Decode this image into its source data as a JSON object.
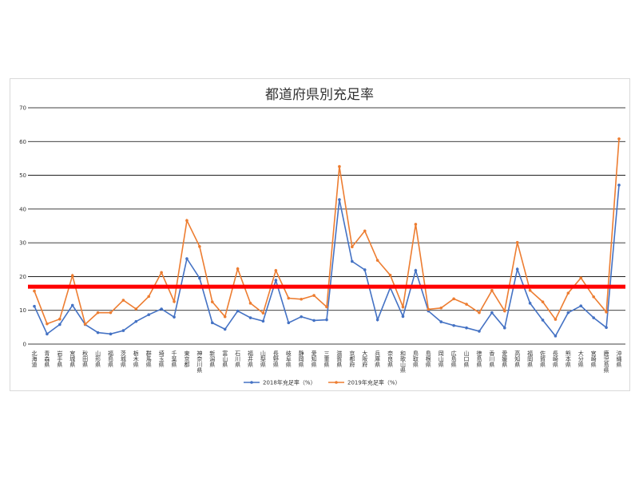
{
  "chart_data": {
    "type": "line",
    "title": "都道府県別充足率",
    "xlabel": "",
    "ylabel": "",
    "ylim": [
      0,
      70
    ],
    "yticks": [
      0,
      10,
      20,
      30,
      40,
      50,
      60,
      70
    ],
    "grid": true,
    "legend_position": "bottom",
    "categories": [
      "北海道",
      "青森県",
      "岩手県",
      "宮城県",
      "秋田県",
      "山形県",
      "福島県",
      "茨城県",
      "栃木県",
      "群馬県",
      "埼玉県",
      "千葉県",
      "東京都",
      "神奈川県",
      "新潟県",
      "富山県",
      "石川県",
      "福井県",
      "山梨県",
      "長野県",
      "岐阜県",
      "静岡県",
      "愛知県",
      "三重県",
      "滋賀県",
      "京都府",
      "大阪府",
      "兵庫県",
      "奈良県",
      "和歌山県",
      "鳥取県",
      "島根県",
      "岡山県",
      "広島県",
      "山口県",
      "徳島県",
      "香川県",
      "愛媛県",
      "高知県",
      "福岡県",
      "佐賀県",
      "長崎県",
      "熊本県",
      "大分県",
      "宮崎県",
      "鹿児島県",
      "沖縄県"
    ],
    "series": [
      {
        "name": "2018年充足率（%）",
        "color": "#4472c4",
        "values": [
          11.2,
          3.0,
          5.8,
          11.5,
          5.8,
          3.4,
          3.0,
          4.0,
          6.7,
          8.7,
          10.4,
          8.0,
          25.3,
          19.5,
          6.3,
          4.4,
          9.8,
          7.8,
          6.8,
          18.9,
          6.3,
          8.1,
          7.0,
          7.2,
          42.8,
          24.5,
          22.0,
          7.2,
          16.7,
          8.2,
          21.8,
          9.8,
          6.6,
          5.5,
          4.8,
          3.8,
          9.3,
          4.8,
          22.2,
          12.1,
          7.1,
          2.4,
          9.3,
          11.3,
          7.8,
          4.9,
          47.1
        ]
      },
      {
        "name": "2019年充足率（%）",
        "color": "#ed7d31",
        "values": [
          15.7,
          6.0,
          7.4,
          20.3,
          5.9,
          9.3,
          9.3,
          13.0,
          10.4,
          14.1,
          21.2,
          12.6,
          36.6,
          28.9,
          12.5,
          8.1,
          22.3,
          12.1,
          9.2,
          21.8,
          13.6,
          13.3,
          14.4,
          11.0,
          52.6,
          28.8,
          33.5,
          24.8,
          20.4,
          11.0,
          35.5,
          10.3,
          10.7,
          13.4,
          11.8,
          9.3,
          15.9,
          9.8,
          30.1,
          15.9,
          12.5,
          7.3,
          15.1,
          19.6,
          14.0,
          9.5,
          60.8
        ]
      }
    ],
    "reference_line": {
      "value": 17,
      "color": "#ff0000"
    }
  }
}
